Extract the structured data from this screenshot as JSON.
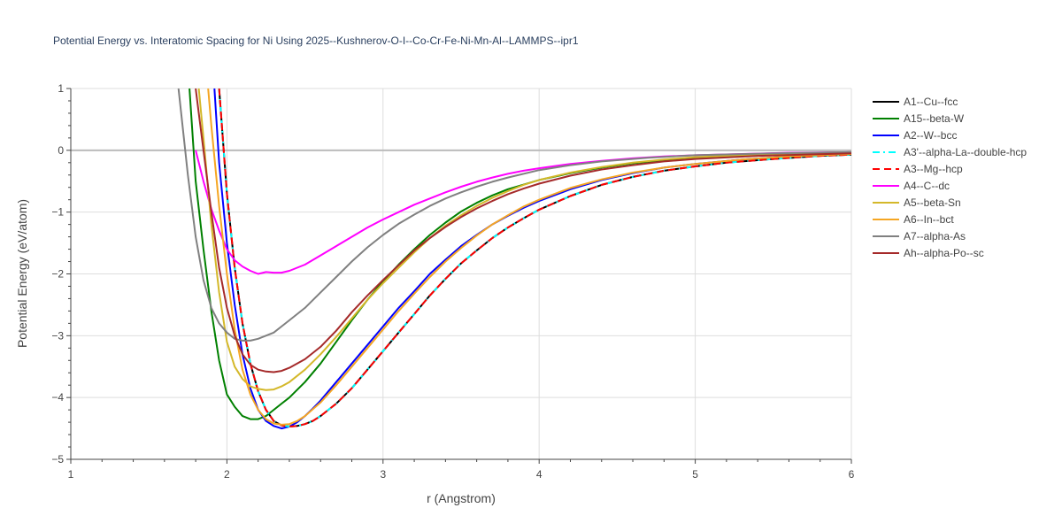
{
  "chart_data": {
    "type": "line",
    "title": "Potential Energy vs. Interatomic Spacing for Ni Using 2025--Kushnerov-O-I--Co-Cr-Fe-Ni-Mn-Al--LAMMPS--ipr1",
    "xlabel": "r (Angstrom)",
    "ylabel": "Potential Energy (eV/atom)",
    "xlim": [
      1,
      6
    ],
    "ylim": [
      -5,
      1
    ],
    "xticks": [
      1,
      2,
      3,
      4,
      5,
      6
    ],
    "yticks": [
      1,
      0,
      -1,
      -2,
      -3,
      -4,
      -5
    ],
    "grid": true,
    "legend_position": "right",
    "series": [
      {
        "name": "A1--Cu--fcc",
        "color": "#000000",
        "dash": "solid",
        "x": [
          1.95,
          2.0,
          2.05,
          2.1,
          2.15,
          2.2,
          2.25,
          2.3,
          2.35,
          2.4,
          2.45,
          2.5,
          2.55,
          2.6,
          2.7,
          2.8,
          2.9,
          3.0,
          3.1,
          3.2,
          3.3,
          3.4,
          3.5,
          3.6,
          3.7,
          3.8,
          3.9,
          4.0,
          4.2,
          4.4,
          4.6,
          4.8,
          5.0,
          5.2,
          5.5,
          5.8,
          6.0
        ],
        "y": [
          1.0,
          -0.7,
          -1.9,
          -2.8,
          -3.45,
          -3.9,
          -4.2,
          -4.38,
          -4.45,
          -4.47,
          -4.46,
          -4.43,
          -4.38,
          -4.3,
          -4.1,
          -3.85,
          -3.55,
          -3.25,
          -2.95,
          -2.65,
          -2.35,
          -2.08,
          -1.83,
          -1.62,
          -1.42,
          -1.25,
          -1.1,
          -0.96,
          -0.74,
          -0.56,
          -0.43,
          -0.33,
          -0.26,
          -0.2,
          -0.14,
          -0.09,
          -0.07
        ]
      },
      {
        "name": "A15--beta-W",
        "color": "#008000",
        "dash": "solid",
        "x": [
          1.76,
          1.8,
          1.85,
          1.9,
          1.95,
          2.0,
          2.05,
          2.1,
          2.15,
          2.2,
          2.25,
          2.3,
          2.35,
          2.4,
          2.5,
          2.6,
          2.7,
          2.8,
          2.9,
          3.0,
          3.1,
          3.2,
          3.3,
          3.4,
          3.5,
          3.6,
          3.7,
          3.8,
          4.0,
          4.2,
          4.4,
          4.6,
          4.8,
          5.0,
          5.3,
          5.6,
          6.0
        ],
        "y": [
          1.0,
          -0.5,
          -1.6,
          -2.6,
          -3.4,
          -3.95,
          -4.15,
          -4.3,
          -4.35,
          -4.35,
          -4.3,
          -4.2,
          -4.1,
          -4.0,
          -3.75,
          -3.45,
          -3.1,
          -2.75,
          -2.42,
          -2.12,
          -1.85,
          -1.6,
          -1.37,
          -1.17,
          -0.99,
          -0.85,
          -0.73,
          -0.63,
          -0.48,
          -0.37,
          -0.28,
          -0.21,
          -0.16,
          -0.12,
          -0.08,
          -0.05,
          -0.03
        ]
      },
      {
        "name": "A2--W--bcc",
        "color": "#0000ff",
        "dash": "solid",
        "x": [
          1.92,
          1.95,
          2.0,
          2.05,
          2.1,
          2.15,
          2.2,
          2.25,
          2.3,
          2.35,
          2.4,
          2.45,
          2.5,
          2.55,
          2.6,
          2.7,
          2.8,
          2.9,
          3.0,
          3.1,
          3.2,
          3.3,
          3.4,
          3.5,
          3.6,
          3.7,
          3.8,
          3.9,
          4.0,
          4.2,
          4.4,
          4.6,
          4.8,
          5.0,
          5.3,
          5.6,
          6.0
        ],
        "y": [
          1.0,
          -0.2,
          -1.5,
          -2.5,
          -3.3,
          -3.85,
          -4.2,
          -4.38,
          -4.46,
          -4.5,
          -4.47,
          -4.4,
          -4.3,
          -4.18,
          -4.05,
          -3.75,
          -3.45,
          -3.15,
          -2.85,
          -2.55,
          -2.28,
          -2.0,
          -1.77,
          -1.55,
          -1.37,
          -1.2,
          -1.06,
          -0.93,
          -0.82,
          -0.63,
          -0.48,
          -0.37,
          -0.28,
          -0.22,
          -0.15,
          -0.1,
          -0.06
        ]
      },
      {
        "name": "A3'--alpha-La--double-hcp",
        "color": "#00ffff",
        "dash": "dashdot",
        "x": [
          1.95,
          2.0,
          2.05,
          2.1,
          2.15,
          2.2,
          2.25,
          2.3,
          2.35,
          2.4,
          2.45,
          2.5,
          2.55,
          2.6,
          2.7,
          2.8,
          2.9,
          3.0,
          3.1,
          3.2,
          3.3,
          3.4,
          3.5,
          3.6,
          3.7,
          3.8,
          3.9,
          4.0,
          4.2,
          4.4,
          4.6,
          4.8,
          5.0,
          5.2,
          5.5,
          5.8,
          6.0
        ],
        "y": [
          1.0,
          -0.7,
          -1.9,
          -2.8,
          -3.45,
          -3.9,
          -4.2,
          -4.38,
          -4.45,
          -4.47,
          -4.46,
          -4.43,
          -4.38,
          -4.3,
          -4.1,
          -3.85,
          -3.55,
          -3.25,
          -2.95,
          -2.65,
          -2.35,
          -2.08,
          -1.83,
          -1.62,
          -1.42,
          -1.25,
          -1.1,
          -0.96,
          -0.74,
          -0.56,
          -0.43,
          -0.33,
          -0.26,
          -0.2,
          -0.14,
          -0.09,
          -0.07
        ]
      },
      {
        "name": "A3--Mg--hcp",
        "color": "#ff0000",
        "dash": "dash",
        "x": [
          1.95,
          2.0,
          2.05,
          2.1,
          2.15,
          2.2,
          2.25,
          2.3,
          2.35,
          2.4,
          2.45,
          2.5,
          2.55,
          2.6,
          2.7,
          2.8,
          2.9,
          3.0,
          3.1,
          3.2,
          3.3,
          3.4,
          3.5,
          3.6,
          3.7,
          3.8,
          3.9,
          4.0,
          4.2,
          4.4,
          4.6,
          4.8,
          5.0,
          5.2,
          5.5,
          5.8,
          6.0
        ],
        "y": [
          1.0,
          -0.7,
          -1.9,
          -2.8,
          -3.45,
          -3.9,
          -4.2,
          -4.38,
          -4.45,
          -4.47,
          -4.46,
          -4.43,
          -4.38,
          -4.3,
          -4.1,
          -3.85,
          -3.55,
          -3.25,
          -2.95,
          -2.65,
          -2.35,
          -2.08,
          -1.83,
          -1.62,
          -1.42,
          -1.25,
          -1.1,
          -0.96,
          -0.74,
          -0.56,
          -0.43,
          -0.33,
          -0.26,
          -0.2,
          -0.14,
          -0.09,
          -0.07
        ]
      },
      {
        "name": "A4--C--dc",
        "color": "#ff00ff",
        "dash": "solid",
        "x": [
          1.8,
          1.85,
          1.9,
          1.95,
          2.0,
          2.05,
          2.1,
          2.15,
          2.2,
          2.25,
          2.3,
          2.35,
          2.4,
          2.5,
          2.6,
          2.7,
          2.8,
          2.9,
          3.0,
          3.1,
          3.2,
          3.3,
          3.4,
          3.5,
          3.6,
          3.7,
          3.8,
          3.9,
          4.0,
          4.2,
          4.4,
          4.6,
          4.8,
          5.0,
          5.3,
          5.6,
          6.0
        ],
        "y": [
          0.0,
          -0.5,
          -0.95,
          -1.3,
          -1.6,
          -1.78,
          -1.88,
          -1.95,
          -2.0,
          -1.97,
          -1.98,
          -1.98,
          -1.95,
          -1.85,
          -1.7,
          -1.55,
          -1.4,
          -1.25,
          -1.12,
          -1.0,
          -0.88,
          -0.78,
          -0.68,
          -0.59,
          -0.51,
          -0.44,
          -0.38,
          -0.33,
          -0.29,
          -0.22,
          -0.17,
          -0.13,
          -0.1,
          -0.08,
          -0.06,
          -0.04,
          -0.03
        ]
      },
      {
        "name": "A5--beta-Sn",
        "color": "#d4b82a",
        "dash": "solid",
        "x": [
          1.82,
          1.85,
          1.9,
          1.95,
          2.0,
          2.05,
          2.1,
          2.15,
          2.2,
          2.25,
          2.3,
          2.35,
          2.4,
          2.5,
          2.6,
          2.7,
          2.8,
          2.9,
          3.0,
          3.1,
          3.2,
          3.3,
          3.4,
          3.5,
          3.6,
          3.7,
          3.8,
          3.9,
          4.0,
          4.2,
          4.4,
          4.6,
          4.8,
          5.0,
          5.3,
          5.6,
          6.0
        ],
        "y": [
          1.0,
          0.2,
          -1.2,
          -2.3,
          -3.1,
          -3.5,
          -3.7,
          -3.82,
          -3.86,
          -3.88,
          -3.87,
          -3.82,
          -3.75,
          -3.55,
          -3.3,
          -3.02,
          -2.72,
          -2.42,
          -2.15,
          -1.9,
          -1.65,
          -1.42,
          -1.22,
          -1.05,
          -0.9,
          -0.77,
          -0.66,
          -0.56,
          -0.48,
          -0.36,
          -0.27,
          -0.2,
          -0.15,
          -0.11,
          -0.08,
          -0.05,
          -0.03
        ]
      },
      {
        "name": "A6--In--bct",
        "color": "#f5a623",
        "dash": "solid",
        "x": [
          1.88,
          1.9,
          1.95,
          2.0,
          2.05,
          2.1,
          2.15,
          2.2,
          2.25,
          2.3,
          2.35,
          2.4,
          2.45,
          2.5,
          2.6,
          2.7,
          2.8,
          2.9,
          3.0,
          3.1,
          3.2,
          3.3,
          3.4,
          3.5,
          3.6,
          3.7,
          3.8,
          3.9,
          4.0,
          4.2,
          4.4,
          4.6,
          4.8,
          5.0,
          5.3,
          5.6,
          6.0
        ],
        "y": [
          1.0,
          0.4,
          -0.9,
          -2.0,
          -2.9,
          -3.55,
          -3.95,
          -4.2,
          -4.35,
          -4.42,
          -4.44,
          -4.43,
          -4.38,
          -4.3,
          -4.08,
          -3.8,
          -3.5,
          -3.2,
          -2.9,
          -2.6,
          -2.32,
          -2.05,
          -1.8,
          -1.58,
          -1.38,
          -1.2,
          -1.05,
          -0.91,
          -0.8,
          -0.61,
          -0.47,
          -0.36,
          -0.28,
          -0.22,
          -0.15,
          -0.1,
          -0.06
        ]
      },
      {
        "name": "A7--alpha-As",
        "color": "#808080",
        "dash": "solid",
        "x": [
          1.69,
          1.72,
          1.75,
          1.8,
          1.85,
          1.9,
          1.95,
          2.0,
          2.05,
          2.1,
          2.15,
          2.2,
          2.25,
          2.3,
          2.35,
          2.4,
          2.5,
          2.6,
          2.7,
          2.8,
          2.9,
          3.0,
          3.1,
          3.2,
          3.3,
          3.4,
          3.5,
          3.6,
          3.7,
          3.8,
          4.0,
          4.2,
          4.4,
          4.7,
          5.0,
          5.5,
          6.0
        ],
        "y": [
          1.0,
          0.3,
          -0.4,
          -1.4,
          -2.1,
          -2.55,
          -2.8,
          -2.95,
          -3.05,
          -3.08,
          -3.08,
          -3.05,
          -3.0,
          -2.95,
          -2.85,
          -2.75,
          -2.55,
          -2.3,
          -2.05,
          -1.8,
          -1.57,
          -1.37,
          -1.19,
          -1.04,
          -0.9,
          -0.78,
          -0.68,
          -0.59,
          -0.51,
          -0.44,
          -0.32,
          -0.24,
          -0.18,
          -0.12,
          -0.08,
          -0.05,
          -0.03
        ]
      },
      {
        "name": "Ah--alpha-Po--sc",
        "color": "#a52a2a",
        "dash": "solid",
        "x": [
          1.8,
          1.82,
          1.85,
          1.9,
          1.95,
          2.0,
          2.05,
          2.1,
          2.15,
          2.2,
          2.25,
          2.3,
          2.35,
          2.4,
          2.5,
          2.6,
          2.7,
          2.8,
          2.9,
          3.0,
          3.1,
          3.2,
          3.3,
          3.4,
          3.5,
          3.6,
          3.7,
          3.8,
          3.9,
          4.0,
          4.2,
          4.4,
          4.6,
          4.8,
          5.0,
          5.4,
          6.0
        ],
        "y": [
          1.0,
          0.6,
          0.0,
          -1.0,
          -1.9,
          -2.55,
          -3.0,
          -3.3,
          -3.47,
          -3.55,
          -3.58,
          -3.59,
          -3.57,
          -3.52,
          -3.38,
          -3.18,
          -2.92,
          -2.62,
          -2.35,
          -2.1,
          -1.86,
          -1.62,
          -1.42,
          -1.24,
          -1.08,
          -0.94,
          -0.82,
          -0.71,
          -0.62,
          -0.54,
          -0.41,
          -0.31,
          -0.24,
          -0.18,
          -0.14,
          -0.09,
          -0.05
        ]
      }
    ]
  }
}
